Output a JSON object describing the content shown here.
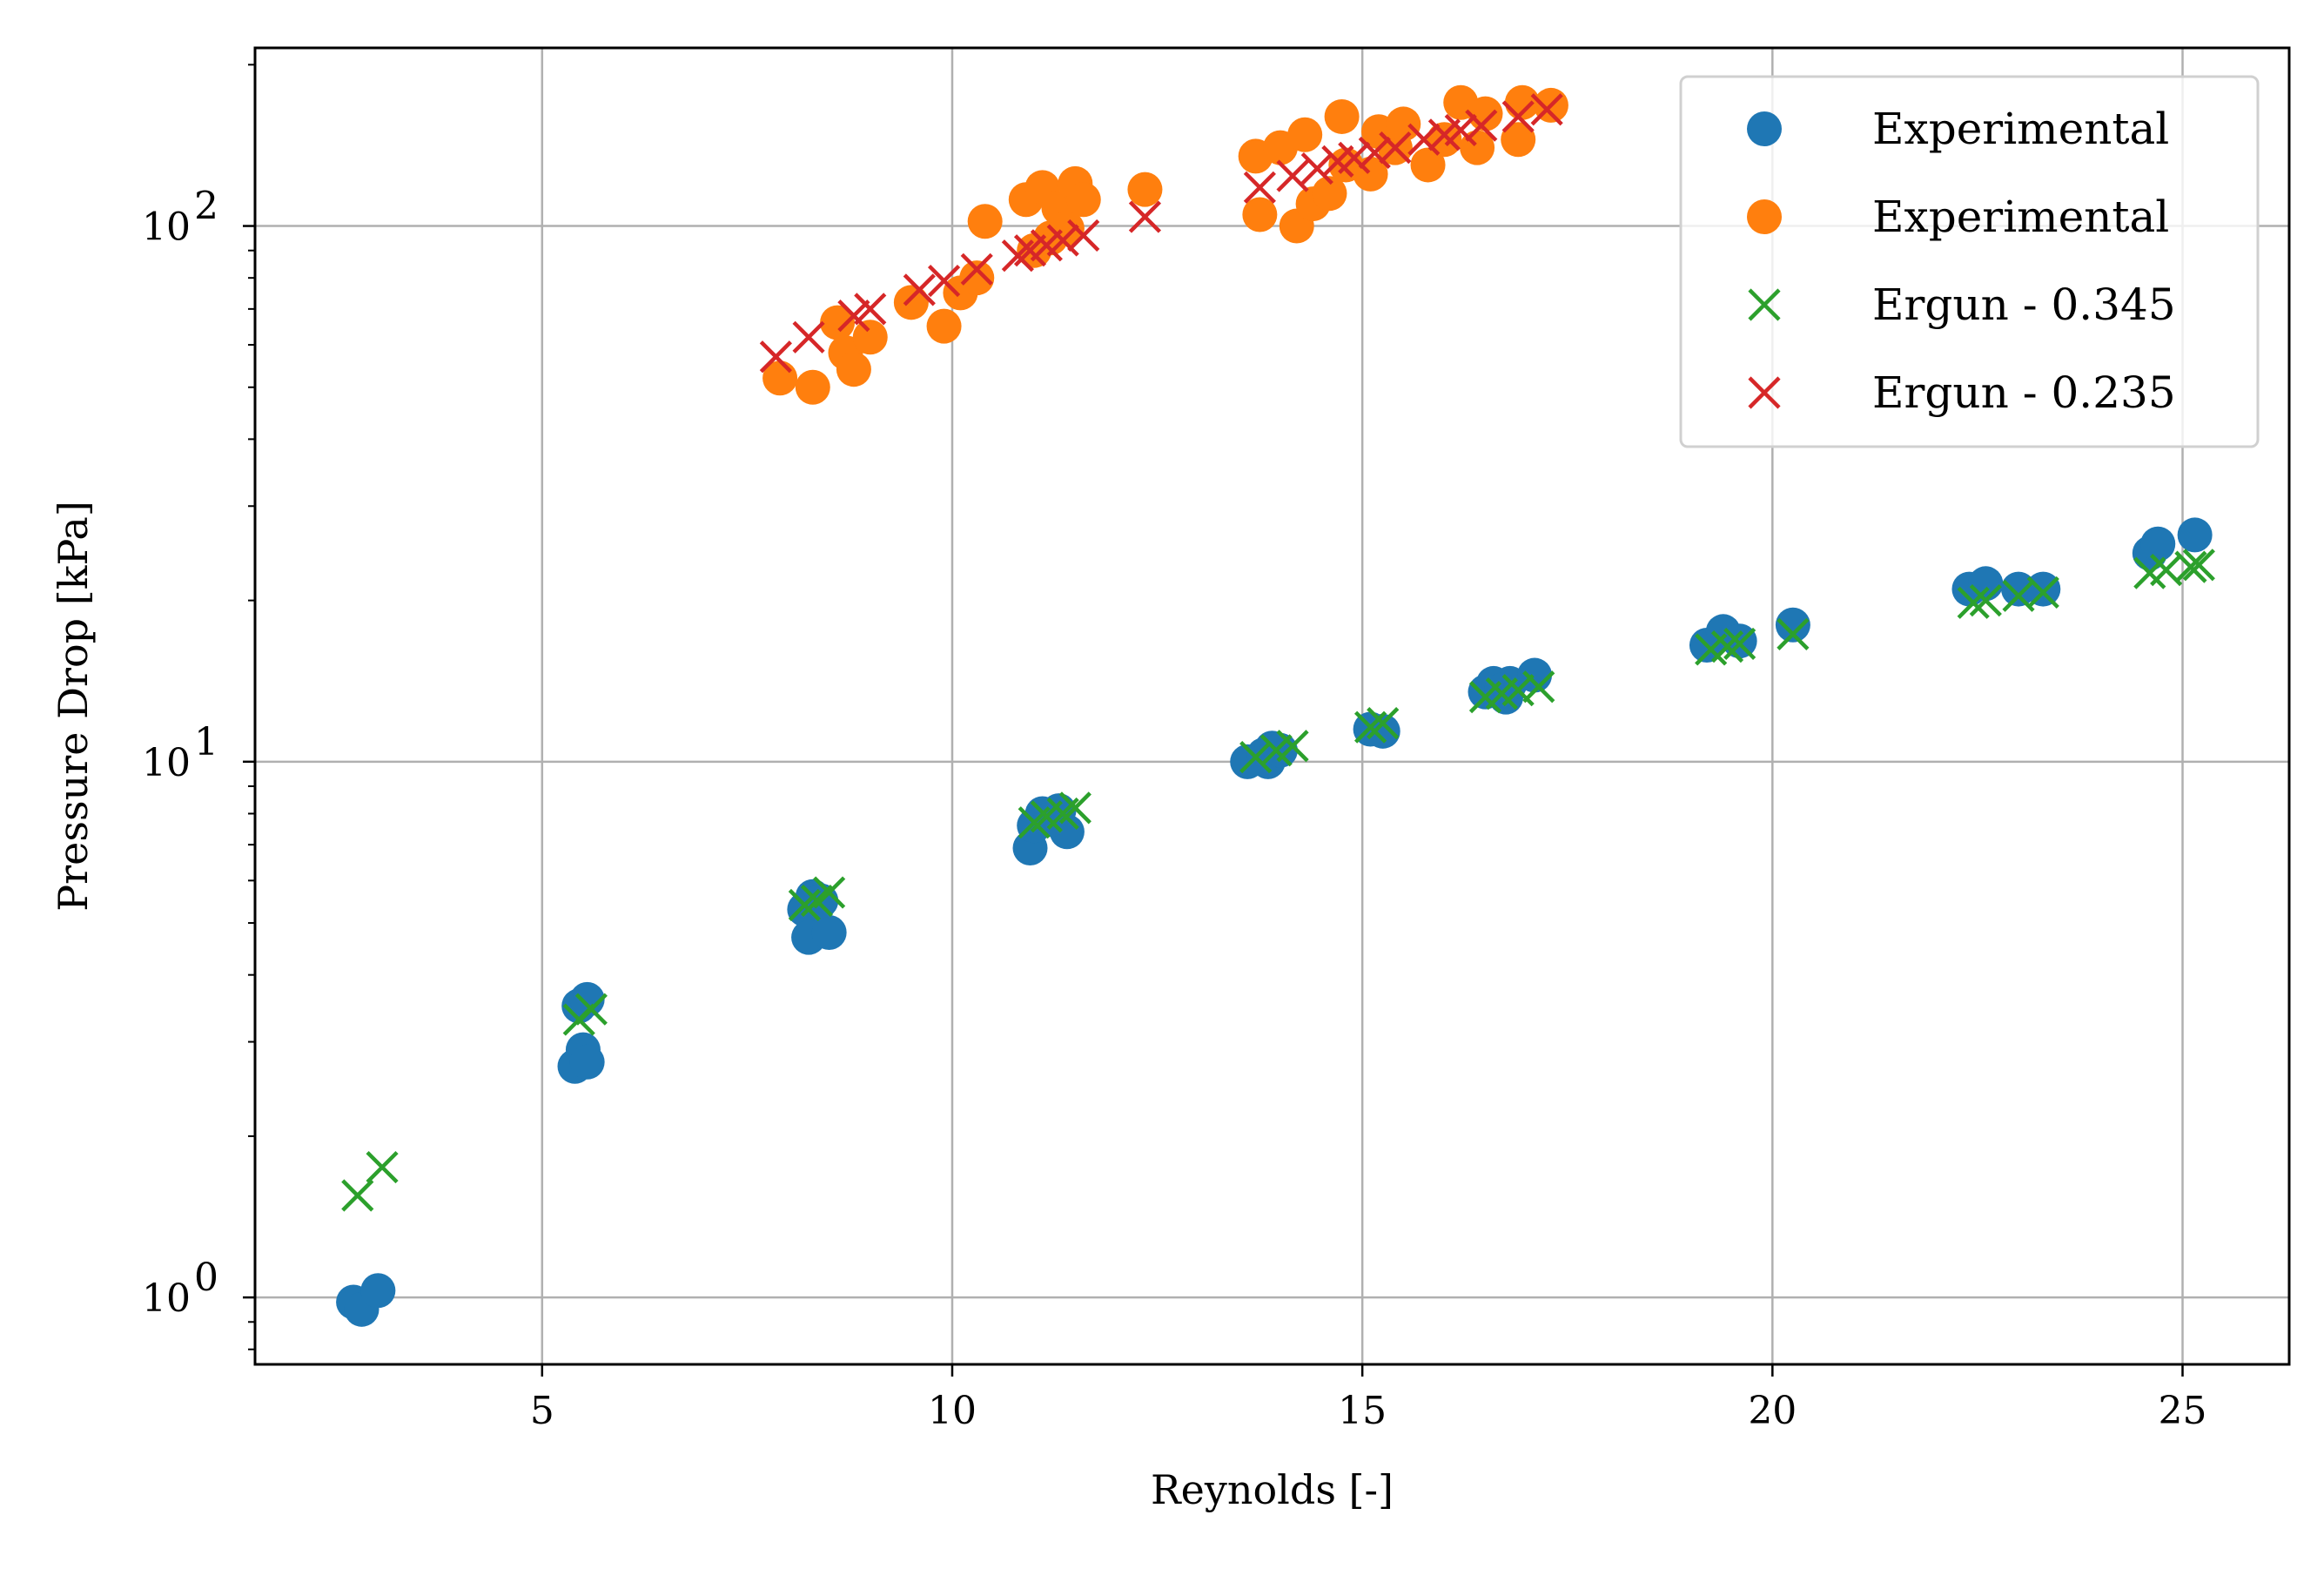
{
  "chart_data": {
    "type": "scatter",
    "title": "",
    "xlabel": "Reynolds [-]",
    "ylabel": "Pressure Drop [kPa]",
    "xlim": [
      1.5,
      26.3
    ],
    "ylim": [
      0.75,
      215
    ],
    "yscale": "log",
    "grid": true,
    "legend_position": "top-right",
    "x_ticks": [
      {
        "value": 5,
        "label": "5"
      },
      {
        "value": 10,
        "label": "10"
      },
      {
        "value": 15,
        "label": "15"
      },
      {
        "value": 20,
        "label": "20"
      },
      {
        "value": 25,
        "label": "25"
      }
    ],
    "y_ticks": [
      {
        "value": 1,
        "base": "10",
        "exp": "0"
      },
      {
        "value": 10,
        "base": "10",
        "exp": "1"
      },
      {
        "value": 100,
        "base": "10",
        "exp": "2"
      }
    ],
    "series": [
      {
        "name": "Experimental",
        "marker": "circle",
        "color": "#1f77b4",
        "points": [
          [
            2.7,
            0.98
          ],
          [
            2.8,
            0.95
          ],
          [
            3.0,
            1.03
          ],
          [
            5.4,
            2.7
          ],
          [
            5.5,
            2.9
          ],
          [
            5.55,
            2.75
          ],
          [
            5.45,
            3.5
          ],
          [
            5.55,
            3.6
          ],
          [
            8.2,
            5.3
          ],
          [
            8.3,
            5.6
          ],
          [
            8.25,
            4.7
          ],
          [
            8.5,
            4.8
          ],
          [
            8.4,
            5.5
          ],
          [
            10.95,
            6.9
          ],
          [
            11.0,
            7.6
          ],
          [
            11.1,
            8.0
          ],
          [
            11.3,
            8.1
          ],
          [
            11.4,
            7.4
          ],
          [
            11.2,
            7.8
          ],
          [
            13.6,
            10.0
          ],
          [
            13.8,
            10.3
          ],
          [
            13.9,
            10.6
          ],
          [
            13.85,
            10.0
          ],
          [
            14.0,
            10.5
          ],
          [
            15.1,
            11.5
          ],
          [
            15.25,
            11.4
          ],
          [
            16.5,
            13.5
          ],
          [
            16.6,
            14.0
          ],
          [
            16.75,
            13.2
          ],
          [
            16.8,
            14.0
          ],
          [
            17.1,
            14.5
          ],
          [
            16.7,
            13.6
          ],
          [
            19.2,
            16.5
          ],
          [
            19.4,
            17.5
          ],
          [
            19.6,
            16.8
          ],
          [
            20.25,
            18.0
          ],
          [
            22.4,
            21.0
          ],
          [
            22.6,
            21.5
          ],
          [
            23.0,
            21.0
          ],
          [
            23.3,
            21.0
          ],
          [
            24.6,
            24.5
          ],
          [
            24.7,
            25.5
          ],
          [
            25.15,
            26.5
          ]
        ]
      },
      {
        "name": "Experimental",
        "marker": "circle",
        "color": "#ff7f0e",
        "points": [
          [
            7.9,
            52
          ],
          [
            8.3,
            50
          ],
          [
            8.7,
            58
          ],
          [
            8.8,
            54
          ],
          [
            9.0,
            62
          ],
          [
            8.6,
            66
          ],
          [
            9.5,
            72
          ],
          [
            9.9,
            65
          ],
          [
            10.1,
            75
          ],
          [
            10.3,
            80
          ],
          [
            10.4,
            102
          ],
          [
            10.9,
            112
          ],
          [
            11.1,
            118
          ],
          [
            11.2,
            95
          ],
          [
            11.3,
            108
          ],
          [
            11.5,
            120
          ],
          [
            11.6,
            112
          ],
          [
            11.0,
            90
          ],
          [
            11.4,
            99
          ],
          [
            12.35,
            117
          ],
          [
            13.7,
            135
          ],
          [
            13.75,
            105
          ],
          [
            14.0,
            140
          ],
          [
            14.2,
            100
          ],
          [
            14.3,
            148
          ],
          [
            14.4,
            110
          ],
          [
            14.6,
            115
          ],
          [
            14.75,
            160
          ],
          [
            14.8,
            130
          ],
          [
            15.1,
            125
          ],
          [
            15.2,
            150
          ],
          [
            15.4,
            140
          ],
          [
            15.5,
            155
          ],
          [
            15.8,
            130
          ],
          [
            16.0,
            145
          ],
          [
            16.2,
            170
          ],
          [
            16.4,
            140
          ],
          [
            16.5,
            162
          ],
          [
            16.9,
            145
          ],
          [
            16.95,
            170
          ],
          [
            17.3,
            168
          ]
        ]
      },
      {
        "name": "Ergun - 0.345",
        "marker": "x",
        "color": "#2ca02c",
        "points": [
          [
            2.75,
            1.55
          ],
          [
            3.05,
            1.75
          ],
          [
            5.45,
            3.3
          ],
          [
            5.6,
            3.45
          ],
          [
            8.2,
            5.4
          ],
          [
            8.35,
            5.5
          ],
          [
            8.5,
            5.7
          ],
          [
            11.0,
            7.7
          ],
          [
            11.15,
            7.9
          ],
          [
            11.35,
            8.0
          ],
          [
            11.5,
            8.2
          ],
          [
            13.7,
            10.2
          ],
          [
            13.95,
            10.5
          ],
          [
            14.15,
            10.7
          ],
          [
            15.1,
            11.6
          ],
          [
            15.25,
            11.8
          ],
          [
            16.5,
            13.2
          ],
          [
            16.7,
            13.4
          ],
          [
            16.9,
            13.6
          ],
          [
            17.15,
            13.8
          ],
          [
            19.25,
            16.2
          ],
          [
            19.45,
            16.4
          ],
          [
            19.6,
            16.6
          ],
          [
            20.25,
            17.3
          ],
          [
            22.45,
            19.8
          ],
          [
            22.6,
            20.0
          ],
          [
            23.0,
            20.4
          ],
          [
            23.3,
            20.7
          ],
          [
            24.6,
            22.5
          ],
          [
            24.8,
            22.8
          ],
          [
            25.1,
            23.1
          ],
          [
            25.2,
            23.3
          ]
        ]
      },
      {
        "name": "Ergun - 0.235",
        "marker": "x",
        "color": "#d62728",
        "points": [
          [
            7.85,
            57
          ],
          [
            8.25,
            62
          ],
          [
            8.8,
            68
          ],
          [
            9.0,
            70
          ],
          [
            9.6,
            76
          ],
          [
            9.9,
            79
          ],
          [
            10.3,
            83
          ],
          [
            10.8,
            88
          ],
          [
            10.95,
            90
          ],
          [
            11.15,
            92
          ],
          [
            11.35,
            94
          ],
          [
            11.6,
            96
          ],
          [
            12.35,
            104
          ],
          [
            13.75,
            118
          ],
          [
            14.15,
            124
          ],
          [
            14.45,
            128
          ],
          [
            14.7,
            132
          ],
          [
            14.9,
            134
          ],
          [
            15.15,
            137
          ],
          [
            15.4,
            140
          ],
          [
            15.75,
            145
          ],
          [
            16.0,
            148
          ],
          [
            16.2,
            151
          ],
          [
            16.45,
            154
          ],
          [
            16.9,
            160
          ],
          [
            17.25,
            165
          ]
        ]
      }
    ]
  }
}
